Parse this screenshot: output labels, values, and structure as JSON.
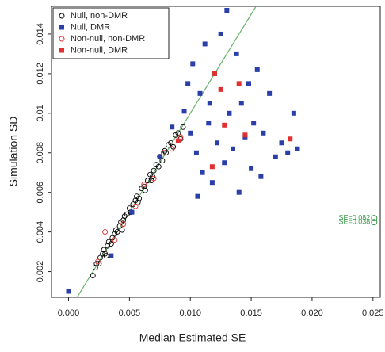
{
  "chart_data": {
    "type": "scatter",
    "x_label": "Median Estimated SE",
    "y_label": "Simulation SD",
    "xlim": [
      -0.0014,
      0.0256
    ],
    "ylim": [
      0.0007,
      0.0154
    ],
    "xticks": [
      {
        "value": 0,
        "label": "0.000"
      },
      {
        "value": 0.005,
        "label": "0.005"
      },
      {
        "value": 0.01,
        "label": "0.010"
      },
      {
        "value": 0.015,
        "label": "0.015"
      },
      {
        "value": 0.02,
        "label": "0.020"
      },
      {
        "value": 0.025,
        "label": "0.025"
      }
    ],
    "yticks": [
      0.002,
      0.004,
      0.006,
      0.008,
      0.01,
      0.012,
      0.014
    ],
    "grid": false,
    "legend": "top-left",
    "identity_line_color": "#6db36d",
    "series": [
      {
        "name": "Null, non-DMR",
        "color": "#000000",
        "marker": "circle",
        "x": [
          0.002,
          0.0022,
          0.0023,
          0.0025,
          0.0026,
          0.0028,
          0.0029,
          0.003,
          0.0032,
          0.0033,
          0.0035,
          0.0036,
          0.0038,
          0.0039,
          0.004,
          0.0042,
          0.0043,
          0.0045,
          0.0046,
          0.0048,
          0.005,
          0.0051,
          0.0053,
          0.0055,
          0.0056,
          0.0058,
          0.006,
          0.0062,
          0.0063,
          0.0065,
          0.0067,
          0.0068,
          0.007,
          0.0072,
          0.0074,
          0.0075,
          0.0077,
          0.0079,
          0.008,
          0.0082,
          0.0084,
          0.0086,
          0.0088,
          0.009,
          0.0092,
          0.0094,
          0.0031,
          0.0044,
          0.0057,
          0.0069
        ],
        "values": [
          0.0018,
          0.0022,
          0.0024,
          0.0024,
          0.0027,
          0.0029,
          0.0031,
          0.0029,
          0.0033,
          0.0035,
          0.0034,
          0.0037,
          0.0039,
          0.0041,
          0.004,
          0.0043,
          0.0045,
          0.0046,
          0.0048,
          0.0049,
          0.0052,
          0.005,
          0.0054,
          0.0056,
          0.0058,
          0.0057,
          0.0062,
          0.0063,
          0.0061,
          0.0066,
          0.0069,
          0.0066,
          0.0071,
          0.0074,
          0.0073,
          0.0078,
          0.0076,
          0.0081,
          0.008,
          0.0084,
          0.0085,
          0.0083,
          0.0089,
          0.009,
          0.0087,
          0.0093,
          0.0028,
          0.0041,
          0.0055,
          0.0068
        ]
      },
      {
        "name": "Null, DMR",
        "color": "#2b3fa8",
        "marker": "square",
        "x": [
          0.0,
          0.0035,
          0.0052,
          0.0075,
          0.0085,
          0.0095,
          0.01,
          0.0102,
          0.0105,
          0.0108,
          0.011,
          0.0112,
          0.0115,
          0.0118,
          0.012,
          0.0122,
          0.0125,
          0.0128,
          0.013,
          0.0132,
          0.0135,
          0.0138,
          0.014,
          0.0142,
          0.0145,
          0.0148,
          0.015,
          0.0152,
          0.0155,
          0.0158,
          0.016,
          0.0165,
          0.017,
          0.0175,
          0.018,
          0.0185,
          0.0188,
          0.0098,
          0.0106,
          0.0116
        ],
        "values": [
          0.001,
          0.0028,
          0.005,
          0.0078,
          0.0093,
          0.0101,
          0.009,
          0.0125,
          0.008,
          0.011,
          0.007,
          0.0135,
          0.0095,
          0.0065,
          0.012,
          0.0085,
          0.014,
          0.0075,
          0.0152,
          0.01,
          0.0082,
          0.013,
          0.006,
          0.0105,
          0.0088,
          0.0115,
          0.0072,
          0.0095,
          0.0122,
          0.0068,
          0.009,
          0.011,
          0.0078,
          0.0085,
          0.008,
          0.01,
          0.0082,
          0.0115,
          0.0058,
          0.0105
        ]
      },
      {
        "name": "Non-null, non-DMR",
        "color": "#e03030",
        "marker": "circle",
        "x": [
          0.0024,
          0.003,
          0.0038,
          0.0045,
          0.0055,
          0.0062,
          0.007,
          0.0078,
          0.0085,
          0.0092
        ],
        "values": [
          0.0025,
          0.004,
          0.0036,
          0.0044,
          0.0053,
          0.0064,
          0.0067,
          0.008,
          0.0082,
          0.0088
        ]
      },
      {
        "name": "Non-null, DMR",
        "color": "#e03030",
        "marker": "square",
        "x": [
          0.012,
          0.0125,
          0.014,
          0.0118,
          0.0145,
          0.0182,
          0.0128,
          0.009
        ],
        "values": [
          0.012,
          0.0112,
          0.0115,
          0.0073,
          0.0089,
          0.0087,
          0.0094,
          0.0086
        ]
      }
    ],
    "annotations": [
      {
        "text": "SE=0.082",
        "x": 0.0251,
        "y": 0.0047
      },
      {
        "text": "SE=0.038",
        "x": 0.0251,
        "y": 0.0045
      }
    ],
    "annotation_color": "#3a9a4a"
  }
}
